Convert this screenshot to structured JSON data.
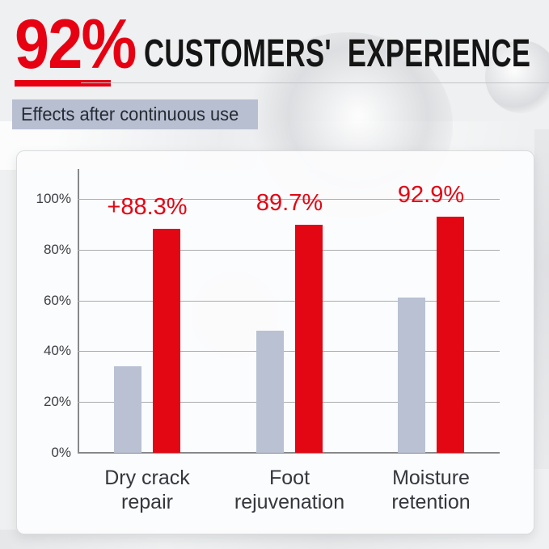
{
  "page": {
    "background_color": "#eef0f1"
  },
  "header": {
    "stat_value": "92%",
    "title": "CUSTOMERS'  EXPERIENCE",
    "accent_color": "#e60012",
    "text_color": "#151515"
  },
  "subtitle": {
    "label": "Effects after continuous use",
    "bg_color": "#b8bfd1",
    "text_color": "#262b34"
  },
  "chart_data": {
    "type": "bar",
    "title": "",
    "categories": [
      {
        "lines": [
          "Dry crack",
          "repair"
        ]
      },
      {
        "lines": [
          "Foot",
          "rejuvenation"
        ]
      },
      {
        "lines": [
          "Moisture",
          "retention"
        ]
      }
    ],
    "series": [
      {
        "name": "gray",
        "color": "#b9c1d3",
        "values": [
          34,
          48,
          61
        ]
      },
      {
        "name": "red",
        "color": "#e30613",
        "values": [
          88.3,
          89.7,
          92.9
        ],
        "labels": [
          "+88.3%",
          "89.7%",
          "92.9%"
        ]
      }
    ],
    "y_ticks": [
      {
        "label": "100%",
        "value": 100
      },
      {
        "label": "80%",
        "value": 80
      },
      {
        "label": "60%",
        "value": 60
      },
      {
        "label": "40%",
        "value": 40
      },
      {
        "label": "20%",
        "value": 20
      },
      {
        "label": "0%",
        "value": 0
      }
    ],
    "ylim": [
      0,
      100
    ],
    "grid": true,
    "legend": "none",
    "value_label_color": "#e30613",
    "gridline_color": "#aaabad"
  }
}
